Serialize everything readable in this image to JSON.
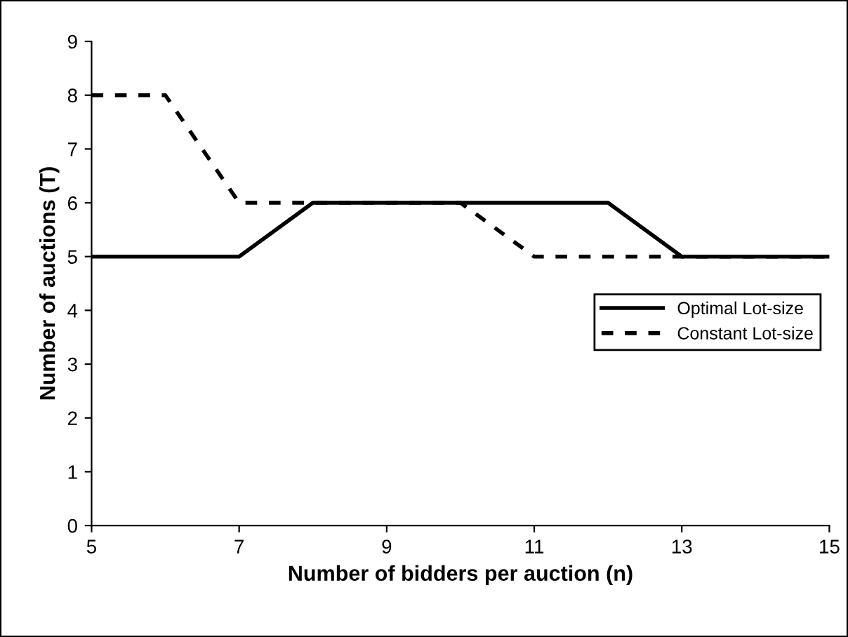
{
  "chart_data": {
    "type": "line",
    "xlabel": "Number of bidders per auction (n)",
    "ylabel": "Number of auctions (T)",
    "x": [
      5,
      6,
      7,
      8,
      9,
      10,
      11,
      12,
      13,
      14,
      15
    ],
    "series": [
      {
        "name": "Optimal Lot-size",
        "color": "#000000",
        "line_style": "solid",
        "values": [
          5,
          5,
          5,
          6,
          6,
          6,
          6,
          6,
          5,
          5,
          5
        ]
      },
      {
        "name": "Constant Lot-size",
        "color": "#000000",
        "line_style": "dashed",
        "values": [
          8,
          8,
          6,
          6,
          6,
          6,
          5,
          5,
          5,
          5,
          5
        ]
      }
    ],
    "xlim": [
      5,
      15
    ],
    "xticks": [
      5,
      7,
      9,
      11,
      13,
      15
    ],
    "ylim": [
      0,
      9
    ],
    "yticks": [
      0,
      1,
      2,
      3,
      4,
      5,
      6,
      7,
      8,
      9
    ],
    "grid": false,
    "legend": "right",
    "marker": "none"
  }
}
